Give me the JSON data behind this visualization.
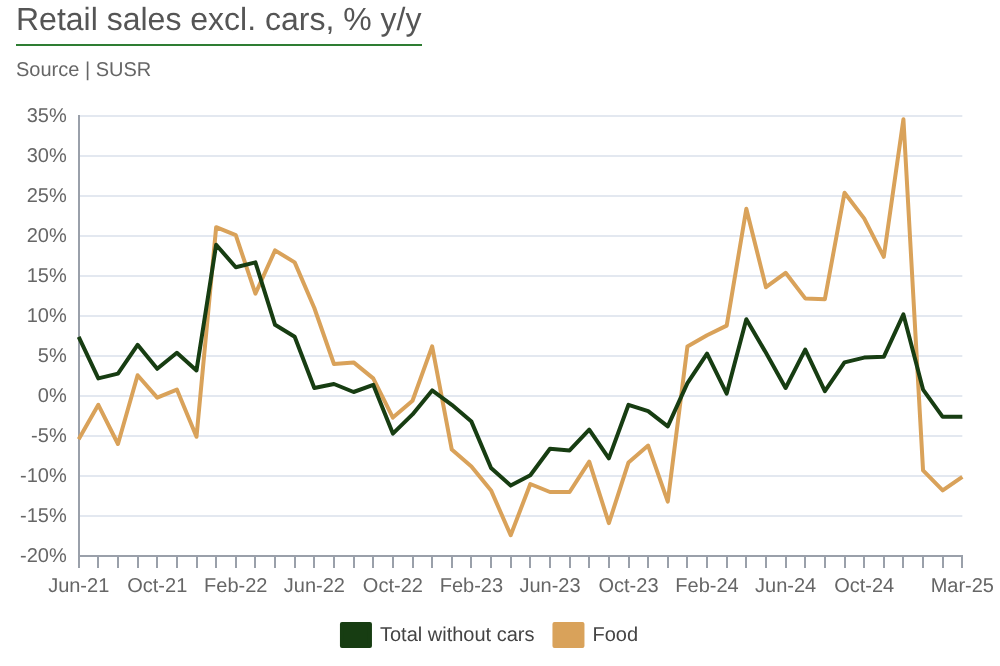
{
  "chart_data": {
    "type": "line",
    "title": "Retail sales excl. cars, % y/y",
    "annotations": [
      "Source | SUSR"
    ],
    "categories": [
      "Jun-21",
      null,
      null,
      null,
      "Oct-21",
      null,
      null,
      null,
      "Feb-22",
      null,
      null,
      null,
      "Jun-22",
      null,
      null,
      null,
      "Oct-22",
      null,
      null,
      null,
      "Feb-23",
      null,
      null,
      null,
      "Jun-23",
      null,
      null,
      null,
      "Oct-23",
      null,
      null,
      null,
      "Feb-24",
      null,
      null,
      null,
      "Jun-24",
      null,
      null,
      null,
      "Oct-24",
      null,
      null,
      null,
      null,
      "Mar-25"
    ],
    "series": [
      {
        "name": "Total without cars",
        "color": "#173d12",
        "values": [
          7.4,
          2.2,
          2.8,
          6.4,
          3.4,
          5.4,
          3.2,
          18.9,
          16.1,
          16.7,
          8.9,
          7.4,
          1.0,
          1.5,
          0.5,
          1.4,
          -4.7,
          -2.3,
          0.7,
          -1.1,
          -3.2,
          -9.0,
          -11.2,
          -9.9,
          -6.6,
          -6.8,
          -4.2,
          -7.8,
          -1.1,
          -1.9,
          -3.8,
          1.6,
          5.3,
          0.3,
          9.6,
          5.4,
          1.0,
          5.8,
          0.6,
          4.2,
          4.8,
          4.9,
          10.2,
          0.8,
          -2.6,
          -2.6
        ]
      },
      {
        "name": "Food",
        "color": "#d9a25a",
        "values": [
          -5.4,
          -1.1,
          -6.0,
          2.6,
          -0.2,
          0.8,
          -5.1,
          21.1,
          20.1,
          12.8,
          18.2,
          16.7,
          11.0,
          4.0,
          4.2,
          2.2,
          -2.7,
          -0.6,
          6.2,
          -6.7,
          -8.8,
          -11.8,
          -17.4,
          -11.0,
          -12.0,
          -12.0,
          -8.2,
          -15.9,
          -8.3,
          -6.2,
          -13.2,
          6.2,
          7.6,
          8.8,
          23.4,
          13.6,
          15.4,
          12.2,
          12.1,
          25.4,
          22.2,
          17.4,
          34.6,
          -9.3,
          -11.8,
          -10.1
        ]
      }
    ],
    "ylim": [
      -20,
      35
    ],
    "yticks": [
      {
        "value": -20,
        "label": "-20%"
      },
      {
        "value": -15,
        "label": "-15%"
      },
      {
        "value": -10,
        "label": "-10%"
      },
      {
        "value": -5,
        "label": "-5%"
      },
      {
        "value": 0,
        "label": "0%"
      },
      {
        "value": 5,
        "label": "5%"
      },
      {
        "value": 10,
        "label": "10%"
      },
      {
        "value": 15,
        "label": "15%"
      },
      {
        "value": 20,
        "label": "20%"
      },
      {
        "value": 25,
        "label": "25%"
      },
      {
        "value": 30,
        "label": "30%"
      },
      {
        "value": 35,
        "label": "35%"
      }
    ],
    "grid": "y",
    "legend": "bottom",
    "marker": "none",
    "line_style": "solid"
  }
}
